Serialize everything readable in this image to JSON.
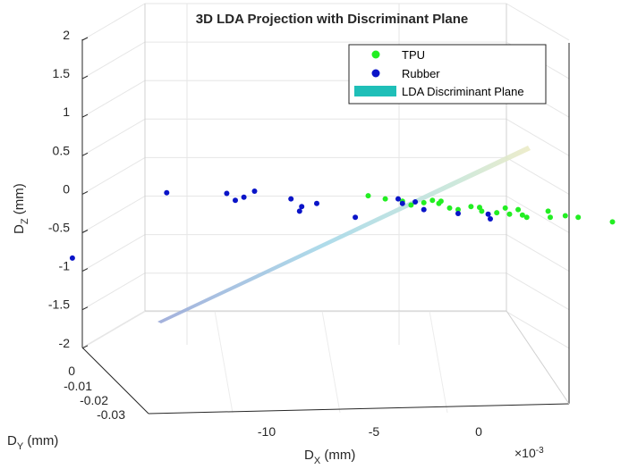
{
  "chart_data": {
    "type": "scatter",
    "title": "3D LDA Projection with Discriminant Plane",
    "xlabel": {
      "base": "D",
      "sub": "X",
      "unit": " (mm)"
    },
    "ylabel": {
      "base": "D",
      "sub": "Y",
      "unit": " (mm)"
    },
    "zlabel": {
      "base": "D",
      "sub": "Z",
      "unit": " (mm)"
    },
    "x_exponent_label": "×10",
    "x_exponent_power": "-3",
    "x_ticks": [
      "-10",
      "-5",
      "0"
    ],
    "y_ticks": [
      "0",
      "-0.01",
      "-0.02",
      "-0.03"
    ],
    "z_ticks": [
      "2",
      "1.5",
      "1",
      "0.5",
      "0",
      "-0.5",
      "-1",
      "-1.5",
      "-2"
    ],
    "zlim": [
      -2,
      2
    ],
    "grid": true,
    "legend_position": "top-right",
    "legend": [
      "TPU",
      "Rubber",
      "LDA Discriminant Plane"
    ],
    "colors": {
      "TPU": "#22ee22",
      "Rubber": "#0a14c8",
      "plane": "#1fbfb8"
    },
    "series": [
      {
        "name": "TPU",
        "points": [
          {
            "x": -2.6,
            "z": -0.02
          },
          {
            "x": -2.2,
            "z": -0.06
          },
          {
            "x": -1.8,
            "z": -0.09
          },
          {
            "x": -1.6,
            "z": -0.14
          },
          {
            "x": -1.3,
            "z": -0.11
          },
          {
            "x": -1.1,
            "z": -0.08
          },
          {
            "x": -0.95,
            "z": -0.12
          },
          {
            "x": -0.9,
            "z": -0.09
          },
          {
            "x": -0.7,
            "z": -0.18
          },
          {
            "x": -0.5,
            "z": -0.2
          },
          {
            "x": -0.2,
            "z": -0.16
          },
          {
            "x": 0.0,
            "z": -0.17
          },
          {
            "x": 0.05,
            "z": -0.22
          },
          {
            "x": 0.4,
            "z": -0.24
          },
          {
            "x": 0.6,
            "z": -0.18
          },
          {
            "x": 0.7,
            "z": -0.26
          },
          {
            "x": 0.9,
            "z": -0.2
          },
          {
            "x": 1.0,
            "z": -0.27
          },
          {
            "x": 1.1,
            "z": -0.3
          },
          {
            "x": 1.6,
            "z": -0.22
          },
          {
            "x": 1.65,
            "z": -0.3
          },
          {
            "x": 2.0,
            "z": -0.28
          },
          {
            "x": 2.3,
            "z": -0.3
          },
          {
            "x": 3.1,
            "z": -0.36
          }
        ]
      },
      {
        "name": "Rubber",
        "points": [
          {
            "x": -12.9,
            "z": -0.5
          },
          {
            "x": -9.5,
            "z": -0.83
          },
          {
            "x": -7.3,
            "z": 0.02
          },
          {
            "x": -5.9,
            "z": 0.01
          },
          {
            "x": -5.7,
            "z": -0.08
          },
          {
            "x": -5.5,
            "z": -0.04
          },
          {
            "x": -5.25,
            "z": 0.04
          },
          {
            "x": -4.4,
            "z": -0.06
          },
          {
            "x": -4.2,
            "z": -0.22
          },
          {
            "x": -4.15,
            "z": -0.16
          },
          {
            "x": -3.8,
            "z": -0.12
          },
          {
            "x": -2.9,
            "z": -0.3
          },
          {
            "x": -1.9,
            "z": -0.06
          },
          {
            "x": -1.8,
            "z": -0.12
          },
          {
            "x": -1.5,
            "z": -0.1
          },
          {
            "x": -1.3,
            "z": -0.2
          },
          {
            "x": -0.5,
            "z": -0.25
          },
          {
            "x": 0.2,
            "z": -0.26
          },
          {
            "x": 0.25,
            "z": -0.32
          }
        ]
      }
    ]
  }
}
